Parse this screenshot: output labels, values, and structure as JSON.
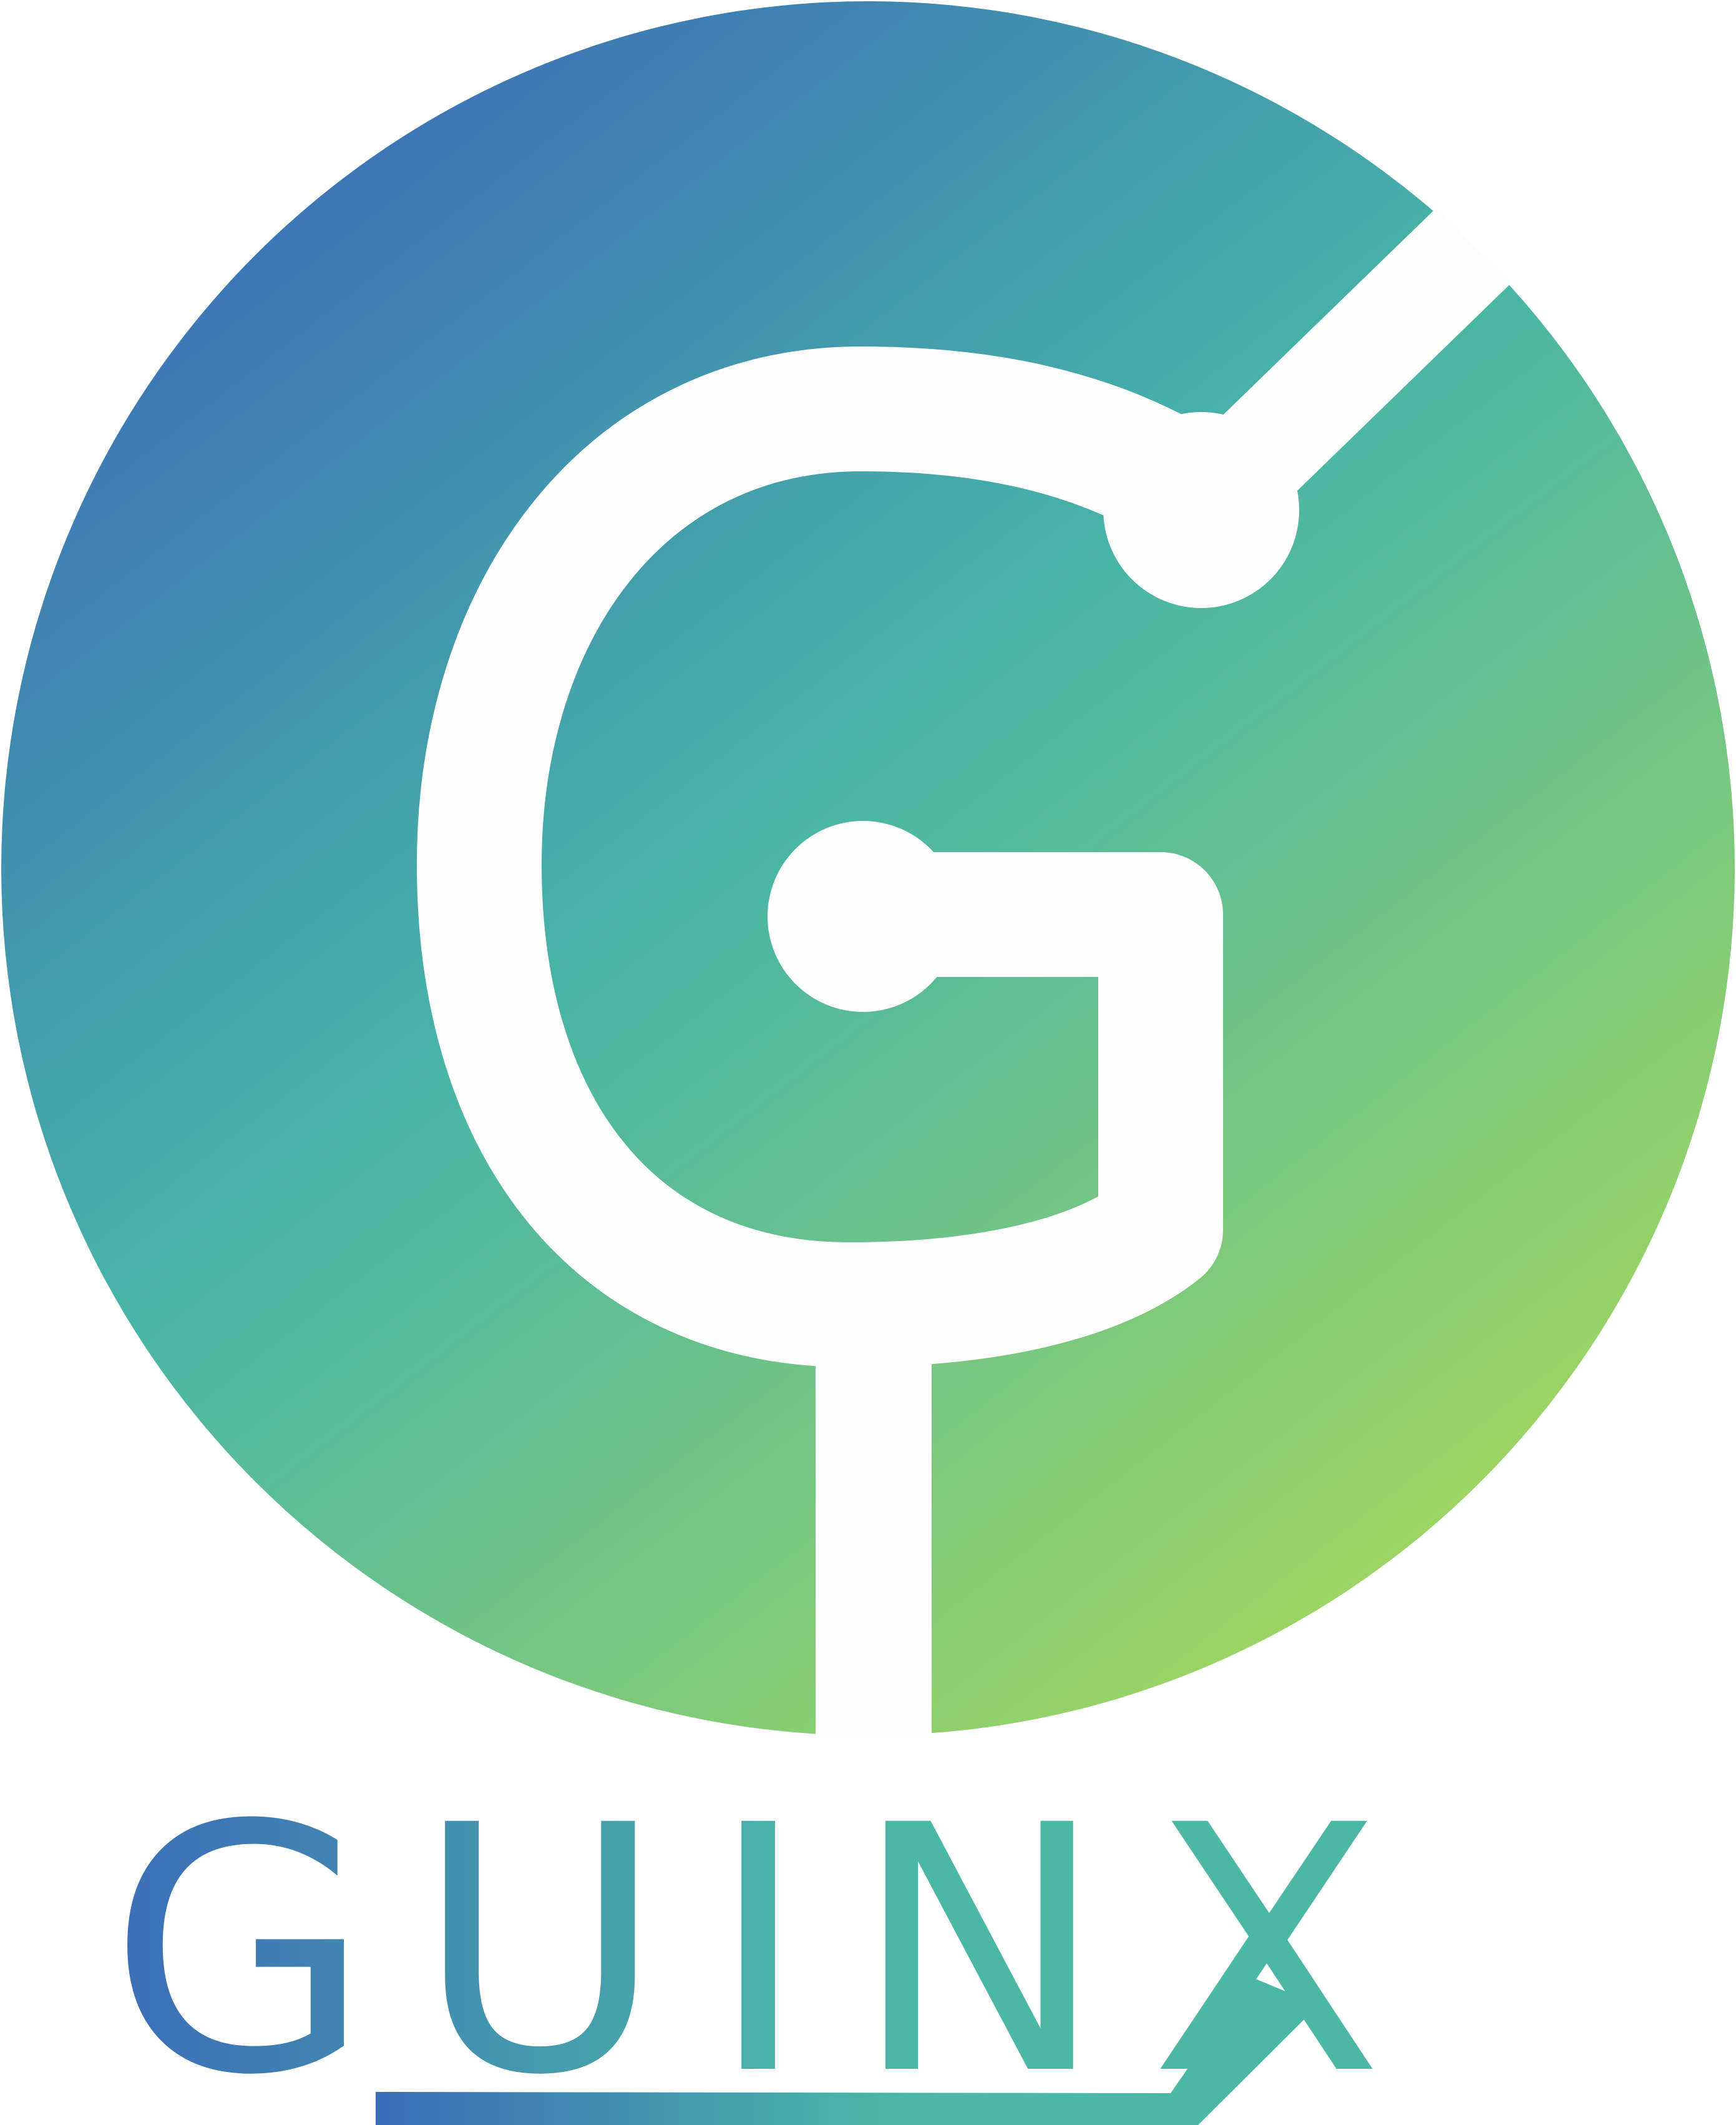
{
  "brand": {
    "wordmark": "GUINX"
  },
  "colors": {
    "gradient_start": "#3b6db8",
    "gradient_mid": "#47b5a7",
    "gradient_end": "#a6d95a",
    "wordmark_start": "#3b6db8",
    "wordmark_end": "#4bb8a6",
    "mark_fill": "#fdfdfd",
    "background": "#ffffff"
  },
  "icons": {
    "emblem": "circuit-g-emblem-icon"
  }
}
